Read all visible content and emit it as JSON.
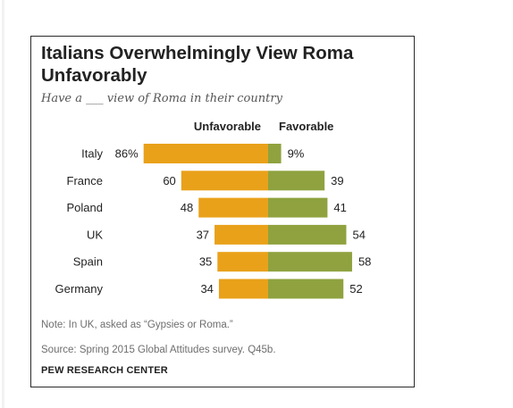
{
  "colors": {
    "unfavorable": "#e9a11a",
    "favorable": "#8fa23f",
    "text": "#222222",
    "muted": "#6e6e6e"
  },
  "title": "Italians Overwhelmingly View Roma Unfavorably",
  "subtitle": "Have a ___ view of Roma in their country",
  "note": "Note: In UK, asked as “Gypsies or Roma.”",
  "source": "Source: Spring 2015 Global Attitudes survey. Q45b.",
  "brand": "PEW RESEARCH CENTER",
  "chart_data": {
    "type": "bar",
    "orientation": "horizontal-diverging",
    "categories": [
      "Italy",
      "France",
      "Poland",
      "UK",
      "Spain",
      "Germany"
    ],
    "series": [
      {
        "name": "Unfavorable",
        "values": [
          86,
          60,
          48,
          37,
          35,
          34
        ],
        "labels": [
          "86%",
          "60",
          "48",
          "37",
          "35",
          "34"
        ]
      },
      {
        "name": "Favorable",
        "values": [
          9,
          39,
          41,
          54,
          58,
          52
        ],
        "labels": [
          "9%",
          "39",
          "41",
          "54",
          "58",
          "52"
        ]
      }
    ],
    "title": "Italians Overwhelmingly View Roma Unfavorably",
    "xlabel": "",
    "ylabel": "",
    "xlim": [
      0,
      100
    ],
    "grid": false,
    "legend": "top"
  }
}
